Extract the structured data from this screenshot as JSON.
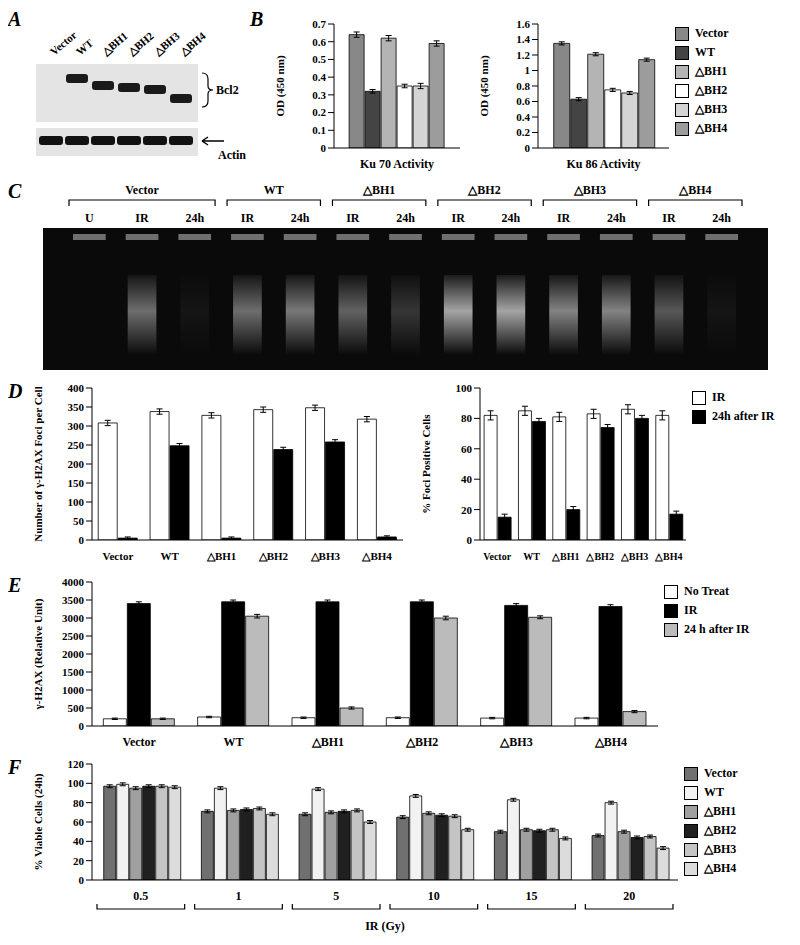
{
  "blot": {
    "panel": "A",
    "lanes": [
      "Vector",
      "WT",
      "△BH1",
      "△BH2",
      "△BH3",
      "△BH4"
    ],
    "bands": [
      "Bcl2",
      "Actin"
    ]
  },
  "gel": {
    "panel": "C",
    "groups": [
      {
        "name": "Vector",
        "lanes": [
          "U",
          "IR",
          "24h"
        ]
      },
      {
        "name": "WT",
        "lanes": [
          "IR",
          "24h"
        ]
      },
      {
        "name": "△BH1",
        "lanes": [
          "IR",
          "24h"
        ]
      },
      {
        "name": "△BH2",
        "lanes": [
          "IR",
          "24h"
        ]
      },
      {
        "name": "△BH3",
        "lanes": [
          "IR",
          "24h"
        ]
      },
      {
        "name": "△BH4",
        "lanes": [
          "IR",
          "24h"
        ]
      }
    ]
  },
  "chart_data": [
    {
      "panel": "B",
      "type": "bar",
      "ylabel": "OD (450 nm)",
      "categories": [
        "Ku 70 Activity"
      ],
      "ylim": [
        0,
        0.7
      ],
      "yticks": [
        0,
        0.1,
        0.2,
        0.3,
        0.4,
        0.5,
        0.6,
        0.7
      ],
      "series": [
        {
          "name": "Vector",
          "color": "#888888",
          "values": [
            0.64
          ],
          "errors": [
            0.015
          ]
        },
        {
          "name": "WT",
          "color": "#444444",
          "values": [
            0.32
          ],
          "errors": [
            0.01
          ]
        },
        {
          "name": "△BH1",
          "color": "#b4b4b4",
          "values": [
            0.62
          ],
          "errors": [
            0.015
          ]
        },
        {
          "name": "△BH2",
          "color": "#ffffff",
          "values": [
            0.35
          ],
          "errors": [
            0.01
          ]
        },
        {
          "name": "△BH3",
          "color": "#d4d4d4",
          "values": [
            0.35
          ],
          "errors": [
            0.015
          ]
        },
        {
          "name": "△BH4",
          "color": "#9c9c9c",
          "values": [
            0.59
          ],
          "errors": [
            0.015
          ]
        }
      ]
    },
    {
      "type": "bar",
      "ylabel": "OD (450 nm)",
      "categories": [
        "Ku 86 Activity"
      ],
      "ylim": [
        0,
        1.6
      ],
      "yticks": [
        0,
        0.2,
        0.4,
        0.6,
        0.8,
        1,
        1.2,
        1.4,
        1.6
      ],
      "legend": "right",
      "series": [
        {
          "name": "Vector",
          "color": "#888888",
          "values": [
            1.35
          ],
          "errors": [
            0.02
          ]
        },
        {
          "name": "WT",
          "color": "#444444",
          "values": [
            0.63
          ],
          "errors": [
            0.02
          ]
        },
        {
          "name": "△BH1",
          "color": "#b4b4b4",
          "values": [
            1.21
          ],
          "errors": [
            0.02
          ]
        },
        {
          "name": "△BH2",
          "color": "#ffffff",
          "values": [
            0.75
          ],
          "errors": [
            0.02
          ]
        },
        {
          "name": "△BH3",
          "color": "#d4d4d4",
          "values": [
            0.71
          ],
          "errors": [
            0.02
          ]
        },
        {
          "name": "△BH4",
          "color": "#9c9c9c",
          "values": [
            1.14
          ],
          "errors": [
            0.02
          ]
        }
      ]
    },
    {
      "panel": "D",
      "type": "bar",
      "ylabel": "Number of γ-H2AX Foci per Cell",
      "categories": [
        "Vector",
        "WT",
        "△BH1",
        "△BH2",
        "△BH3",
        "△BH4"
      ],
      "ylim": [
        0,
        400
      ],
      "yticks": [
        0,
        50,
        100,
        150,
        200,
        250,
        300,
        350,
        400
      ],
      "series": [
        {
          "name": "IR",
          "color": "#ffffff",
          "values": [
            308,
            338,
            328,
            343,
            348,
            318
          ],
          "errors": [
            7,
            7,
            7,
            7,
            7,
            7
          ]
        },
        {
          "name": "24h after IR",
          "color": "#000000",
          "values": [
            5,
            248,
            5,
            238,
            258,
            8
          ],
          "errors": [
            3,
            6,
            3,
            6,
            6,
            3
          ]
        }
      ]
    },
    {
      "type": "bar",
      "ylabel": "% Foci Positive Cells",
      "categories": [
        "Vector",
        "WT",
        "△BH1",
        "△BH2",
        "△BH3",
        "△BH4"
      ],
      "ylim": [
        0,
        100
      ],
      "yticks": [
        0,
        20,
        40,
        60,
        80,
        100
      ],
      "legend": "right",
      "series": [
        {
          "name": "IR",
          "color": "#ffffff",
          "values": [
            82,
            85,
            81,
            83,
            86,
            82
          ],
          "errors": [
            3,
            3,
            3,
            3,
            3,
            3
          ]
        },
        {
          "name": "24h after IR",
          "color": "#000000",
          "values": [
            15,
            78,
            20,
            74,
            80,
            17
          ],
          "errors": [
            2,
            2,
            2,
            2,
            2,
            2
          ]
        }
      ]
    },
    {
      "panel": "E",
      "type": "bar",
      "ylabel": "γ-H2AX (Relative Unit)",
      "categories": [
        "Vector",
        "WT",
        "△BH1",
        "△BH2",
        "△BH3",
        "△BH4"
      ],
      "ylim": [
        0,
        4000
      ],
      "yticks": [
        0,
        500,
        1000,
        1500,
        2000,
        2500,
        3000,
        3500,
        4000
      ],
      "legend": "right",
      "series": [
        {
          "name": "No Treat",
          "color": "#ffffff",
          "values": [
            200,
            250,
            230,
            230,
            220,
            220
          ],
          "errors": [
            20,
            20,
            20,
            20,
            20,
            20
          ]
        },
        {
          "name": "IR",
          "color": "#000000",
          "values": [
            3400,
            3450,
            3450,
            3450,
            3350,
            3320
          ],
          "errors": [
            50,
            50,
            50,
            50,
            50,
            50
          ]
        },
        {
          "name": "24 h after IR",
          "color": "#bbbbbb",
          "values": [
            200,
            3050,
            500,
            3000,
            3020,
            400
          ],
          "errors": [
            20,
            50,
            30,
            50,
            40,
            30
          ]
        }
      ]
    },
    {
      "panel": "F",
      "type": "bar",
      "ylabel": "% Viable Cells (24h)",
      "xlabel": "IR (Gy)",
      "categories": [
        "0.5",
        "1",
        "5",
        "10",
        "15",
        "20"
      ],
      "ylim": [
        0,
        120
      ],
      "yticks": [
        0,
        20,
        40,
        60,
        80,
        100,
        120
      ],
      "legend": "right",
      "series": [
        {
          "name": "Vector",
          "color": "#707070",
          "values": [
            97,
            71,
            68,
            65,
            50,
            46
          ],
          "errors": [
            1.5,
            1.5,
            1.5,
            1.5,
            1.5,
            1.5
          ]
        },
        {
          "name": "WT",
          "color": "#f2f2f2",
          "values": [
            99,
            95,
            94,
            87,
            83,
            80
          ],
          "errors": [
            1.5,
            1.5,
            1.5,
            1.5,
            1.5,
            1.5
          ]
        },
        {
          "name": "△BH1",
          "color": "#a0a0a0",
          "values": [
            95,
            72,
            70,
            69,
            52,
            50
          ],
          "errors": [
            1.5,
            1.5,
            1.5,
            1.5,
            1.5,
            1.5
          ]
        },
        {
          "name": "△BH2",
          "color": "#202020",
          "values": [
            97,
            73,
            71,
            67,
            51,
            44
          ],
          "errors": [
            1.5,
            1.5,
            1.5,
            1.5,
            1.5,
            1.5
          ]
        },
        {
          "name": "△BH3",
          "color": "#c4c4c4",
          "values": [
            97,
            74,
            72,
            66,
            52,
            45
          ],
          "errors": [
            1.5,
            1.5,
            1.5,
            1.5,
            1.5,
            1.5
          ]
        },
        {
          "name": "△BH4",
          "color": "#dcdcdc",
          "values": [
            96,
            68,
            60,
            52,
            43,
            33
          ],
          "errors": [
            1.5,
            1.5,
            1.5,
            1.5,
            1.5,
            1.5
          ]
        }
      ]
    }
  ]
}
